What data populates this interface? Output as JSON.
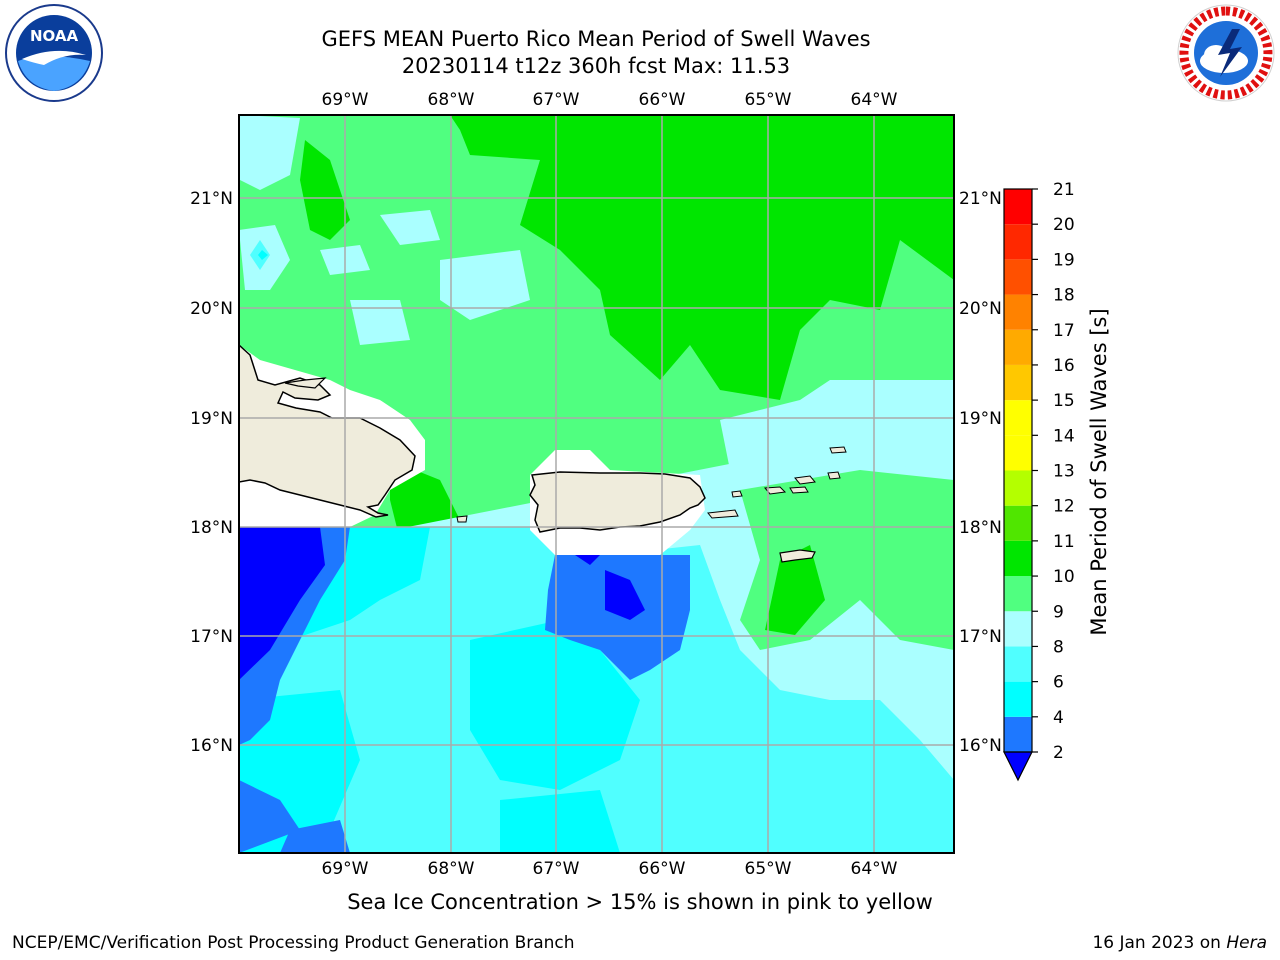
{
  "title": {
    "line1": "GEFS MEAN Puerto Rico Mean Period of Swell Waves",
    "line2": "20230114 t12z 360h fcst   Max: 11.53"
  },
  "logos": {
    "left_text": "NOAA",
    "right_text": "NATIONAL WEATHER SERVICE"
  },
  "map": {
    "lon_ticks": [
      "69°W",
      "68°W",
      "67°W",
      "66°W",
      "65°W",
      "64°W"
    ],
    "lat_ticks": [
      "21°N",
      "20°N",
      "19°N",
      "18°N",
      "17°N",
      "16°N"
    ],
    "lon_range": [
      -70.0,
      -63.25
    ],
    "lat_range": [
      15.0,
      21.75
    ],
    "gridlines": true
  },
  "colorbar": {
    "label": "Mean Period of Swell Waves [s]",
    "ticks": [
      "2",
      "4",
      "6",
      "8",
      "9",
      "10",
      "11",
      "12",
      "13",
      "14",
      "15",
      "16",
      "17",
      "18",
      "19",
      "20",
      "21"
    ],
    "levels": [
      2,
      4,
      6,
      8,
      9,
      10,
      11,
      12,
      13,
      14,
      15,
      16,
      17,
      18,
      19,
      20,
      21
    ],
    "colors": [
      "#0000ff",
      "#1e78ff",
      "#00ffff",
      "#50ffff",
      "#aaffff",
      "#50ff80",
      "#00e600",
      "#50e600",
      "#b4ff00",
      "#ffff00",
      "#ffff00",
      "#ffc800",
      "#ffaa00",
      "#ff8200",
      "#ff5000",
      "#ff2800",
      "#ff0000"
    ],
    "extend": "min"
  },
  "caption": "Sea Ice Concentration > 15% is shown in pink to yellow",
  "footer": {
    "left": "NCEP/EMC/Verification Post Processing Product Generation Branch",
    "right_prefix": "16 Jan 2023 on ",
    "right_host": "Hera"
  }
}
